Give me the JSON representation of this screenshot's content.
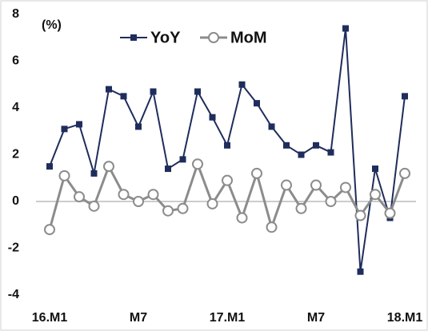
{
  "chart_data": {
    "type": "line",
    "annotation": "(%)",
    "categories": [
      "16.M1",
      null,
      null,
      null,
      null,
      null,
      "M7",
      null,
      null,
      null,
      null,
      null,
      "17.M1",
      null,
      null,
      null,
      null,
      null,
      "M7",
      null,
      null,
      null,
      null,
      null,
      "18.M1"
    ],
    "series": [
      {
        "name": "YoY",
        "color": "#1f2d5c",
        "values": [
          1.5,
          3.1,
          3.3,
          1.2,
          4.8,
          4.5,
          3.2,
          4.7,
          1.4,
          1.8,
          4.7,
          3.6,
          2.4,
          5.0,
          4.2,
          3.2,
          2.4,
          2.0,
          2.4,
          2.1,
          7.4,
          -3.0,
          1.4,
          -0.7,
          4.5
        ]
      },
      {
        "name": "MoM",
        "color": "#8c8c8c",
        "values": [
          -1.2,
          1.1,
          0.2,
          -0.2,
          1.5,
          0.3,
          0.0,
          0.3,
          -0.4,
          -0.3,
          1.6,
          -0.1,
          0.9,
          -0.7,
          1.2,
          -1.1,
          0.7,
          -0.3,
          0.7,
          0.0,
          0.6,
          -0.6,
          0.3,
          -0.5,
          1.2
        ]
      }
    ],
    "ylim": [
      -4,
      8
    ],
    "yticks": [
      -4,
      -2,
      0,
      2,
      4,
      6,
      8
    ],
    "legend": "top"
  }
}
